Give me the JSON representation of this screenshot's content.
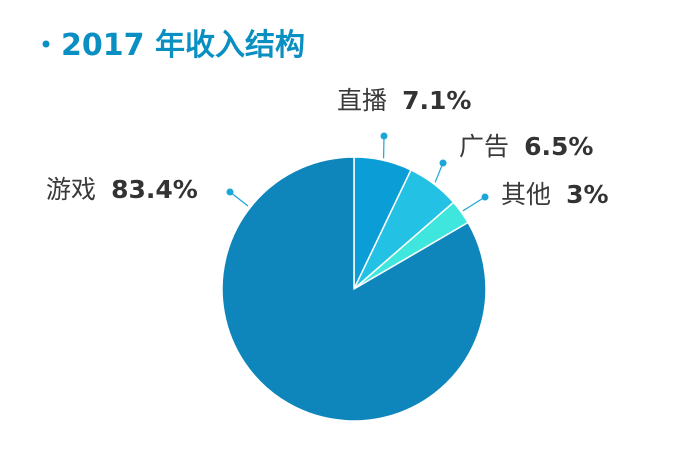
{
  "chart_data": {
    "type": "pie",
    "title": "2017 年收入结构",
    "start_angle_deg": 0,
    "direction": "clockwise",
    "slices": [
      {
        "label": "直播",
        "value": 7.1,
        "display": "7.1%",
        "color": "#0b9ed6"
      },
      {
        "label": "广告",
        "value": 6.5,
        "display": "6.5%",
        "color": "#23c1e4"
      },
      {
        "label": "其他",
        "value": 3,
        "display": "3%",
        "color": "#3fe6de"
      },
      {
        "label": "游戏",
        "value": 83.4,
        "display": "83.4%",
        "color": "#0f86bb"
      }
    ]
  },
  "colors": {
    "title": "#0a8fc2",
    "bullet": "#0a8fc2",
    "leader": "#1aa6d6",
    "slice_edge": "#ffffff"
  }
}
